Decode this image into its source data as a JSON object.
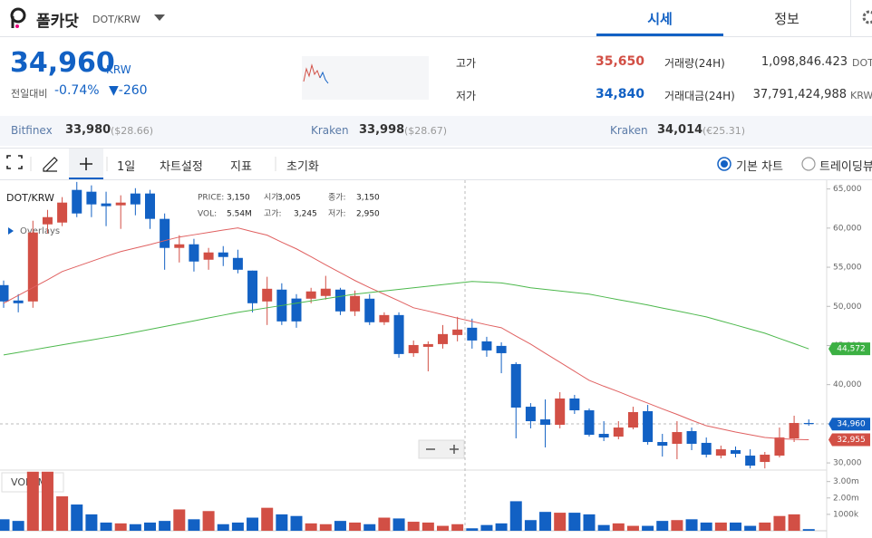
{
  "header": {
    "name": "폴카닷",
    "pair": "DOT/KRW",
    "tabs": [
      "시세",
      "정보"
    ]
  },
  "price": {
    "value": "34,960",
    "unit": "KRW",
    "change_label": "전일대비",
    "change_rate": "-0.74%",
    "change": "▼-260"
  },
  "stats": [
    {
      "label": "고가",
      "value": "35,650"
    },
    {
      "label": "저가",
      "value": "34,840"
    },
    {
      "label": "거래량(24H)",
      "value": "1,098,846.423",
      "unit": "DOT"
    },
    {
      "label": "거래대금(24H)",
      "value": "37,791,424,988",
      "unit": "KRW"
    }
  ],
  "exchanges": [
    {
      "name": "Bitfinex",
      "price": "33,980",
      "ref": "($28.66)"
    },
    {
      "name": "Kraken",
      "price": "33,998",
      "ref": "($28.67)"
    },
    {
      "name": "Kraken",
      "price": "34,014",
      "ref": "(€25.31)"
    }
  ],
  "toolbar": {
    "period": "1일",
    "settings": "차트설정",
    "indicators": "지표",
    "reset": "초기화",
    "options": [
      "기본 차트",
      "트레이딩뷰"
    ]
  },
  "chart_data": {
    "type": "candlestick",
    "title": "DOT/KRW",
    "overlays": "Overlays",
    "info": [
      {
        "label": "PRICE:",
        "value": "3,150"
      },
      {
        "label": "시가:",
        "value": "3,005"
      },
      {
        "label": "종가:",
        "value": "3,150"
      },
      {
        "label": "VOL:",
        "value": "5.54M"
      },
      {
        "label": "고가:",
        "value": "3,245"
      },
      {
        "label": "저가:",
        "value": "2,950"
      }
    ],
    "up_color": "#d24f45",
    "down_color": "#1261c4",
    "open": [
      52715,
      50750,
      50630,
      60480,
      60710,
      64880,
      64650,
      63150,
      62910,
      64420,
      64420,
      61180,
      57470,
      57930,
      55960,
      56890,
      56190,
      54570,
      50630,
      52140,
      51000,
      50980,
      51330,
      52140,
      49360,
      50980,
      47970,
      48890,
      44020,
      44830,
      45180,
      46340,
      47270,
      45530,
      44950,
      42630,
      37180,
      35560,
      34870,
      38230,
      36720,
      33710,
      33360,
      34520,
      36610,
      32670,
      32440,
      34060,
      32560,
      30930,
      31630,
      30930,
      30120,
      30930,
      33130,
      35100
    ],
    "high": [
      53300,
      51560,
      60940,
      62330,
      63960,
      65900,
      65460,
      64650,
      64190,
      65100,
      64880,
      61870,
      59090,
      58630,
      57470,
      57700,
      57240,
      54570,
      53780,
      52950,
      51560,
      52370,
      53900,
      52370,
      52020,
      51560,
      49240,
      49240,
      45640,
      45530,
      47620,
      48660,
      48430,
      46110,
      45410,
      42860,
      37640,
      38110,
      39040,
      38690,
      36950,
      35330,
      35330,
      37180,
      37410,
      33710,
      35330,
      34520,
      33250,
      32210,
      32090,
      31740,
      31400,
      34520,
      36030,
      35560
    ],
    "low": [
      49820,
      49240,
      49820,
      59320,
      60250,
      61400,
      61400,
      60250,
      59900,
      61640,
      59900,
      54680,
      55610,
      54450,
      54680,
      55150,
      54220,
      49240,
      47620,
      47620,
      47270,
      50400,
      50870,
      48890,
      48770,
      47620,
      47620,
      43440,
      43560,
      41700,
      44600,
      45530,
      44600,
      43560,
      41460,
      33140,
      34410,
      31980,
      34410,
      36260,
      33360,
      32790,
      33020,
      34290,
      32330,
      30810,
      30470,
      31630,
      30700,
      30580,
      30700,
      29300,
      29300,
      30700,
      32670,
      34750
    ],
    "close": [
      50630,
      50400,
      59440,
      61400,
      63260,
      61870,
      63030,
      62800,
      63260,
      63030,
      61180,
      57470,
      57930,
      55730,
      56890,
      56310,
      54680,
      50400,
      52250,
      48080,
      48080,
      51910,
      52260,
      49360,
      51330,
      47970,
      48890,
      43910,
      45060,
      45180,
      46460,
      47040,
      45640,
      44370,
      44020,
      37070,
      35330,
      34870,
      38230,
      36720,
      33590,
      33250,
      34520,
      36490,
      32670,
      32200,
      33940,
      32440,
      31050,
      31740,
      31160,
      29650,
      31050,
      33250,
      35100,
      34960
    ],
    "lines": [
      {
        "color": "#e06060",
        "values": [
          50400,
          51400,
          52400,
          53400,
          54450,
          55100,
          55750,
          56400,
          57000,
          57450,
          57900,
          58400,
          58860,
          59150,
          59450,
          59750,
          60020,
          59550,
          59100,
          58200,
          57350,
          56350,
          55300,
          54300,
          53300,
          52400,
          51550,
          50700,
          49820,
          49400,
          48950,
          48500,
          48080,
          47650,
          47270,
          46200,
          45180,
          44000,
          42860,
          41700,
          40550,
          39800,
          39100,
          38350,
          37640,
          36900,
          36200,
          35450,
          34750,
          34350,
          33950,
          33600,
          33250,
          33100,
          33000,
          32955
        ]
      },
      {
        "color": "#4cb84c",
        "values": [
          43800,
          44120,
          44440,
          44760,
          45080,
          45400,
          45710,
          46030,
          46340,
          46700,
          47060,
          47430,
          47790,
          48150,
          48520,
          48880,
          49240,
          49530,
          49820,
          50110,
          50400,
          50690,
          50980,
          51270,
          51560,
          51760,
          51970,
          52170,
          52370,
          52570,
          52780,
          52980,
          53180,
          53100,
          53000,
          52700,
          52370,
          52170,
          51970,
          51760,
          51560,
          51210,
          50860,
          50520,
          50170,
          49790,
          49420,
          49040,
          48660,
          48140,
          47620,
          47090,
          46570,
          45900,
          45240,
          44572
        ]
      }
    ],
    "ylim": [
      29200,
      66000
    ],
    "yticks": [
      {
        "value": 30000,
        "label": "30,000"
      },
      {
        "value": 35000,
        "label": "35,000"
      },
      {
        "value": 40000,
        "label": "40,000"
      },
      {
        "value": 45000,
        "label": "45,000"
      },
      {
        "value": 50000,
        "label": "50,000"
      },
      {
        "value": 55000,
        "label": "55,000"
      },
      {
        "value": 60000,
        "label": "60,000"
      },
      {
        "value": 65000,
        "label": "65,000"
      }
    ],
    "price_markers": [
      {
        "value": 44572,
        "label": "44,572",
        "color": "#3cb043"
      },
      {
        "value": 34960,
        "label": "34,960",
        "color": "#1261c4"
      },
      {
        "value": 32955,
        "label": "32,955",
        "color": "#d24f45"
      }
    ],
    "volume": {
      "label": "VOLUME",
      "values": [
        700000,
        600000,
        3600000,
        3600000,
        2100000,
        1600000,
        1000000,
        500000,
        450000,
        400000,
        500000,
        600000,
        1300000,
        700000,
        1200000,
        400000,
        500000,
        800000,
        1400000,
        1000000,
        900000,
        450000,
        400000,
        600000,
        500000,
        400000,
        800000,
        750000,
        550000,
        500000,
        300000,
        400000,
        150000,
        350000,
        450000,
        1800000,
        650000,
        1150000,
        1100000,
        1100000,
        1000000,
        350000,
        450000,
        300000,
        300000,
        600000,
        650000,
        700000,
        500000,
        500000,
        500000,
        300000,
        500000,
        900000,
        1000000,
        100000
      ],
      "ylim": [
        0,
        3700000
      ],
      "yticks": [
        {
          "value": 1000000,
          "label": "1000k"
        },
        {
          "value": 2000000,
          "label": "2.00m"
        },
        {
          "value": 3000000,
          "label": "3.00m"
        }
      ]
    }
  }
}
